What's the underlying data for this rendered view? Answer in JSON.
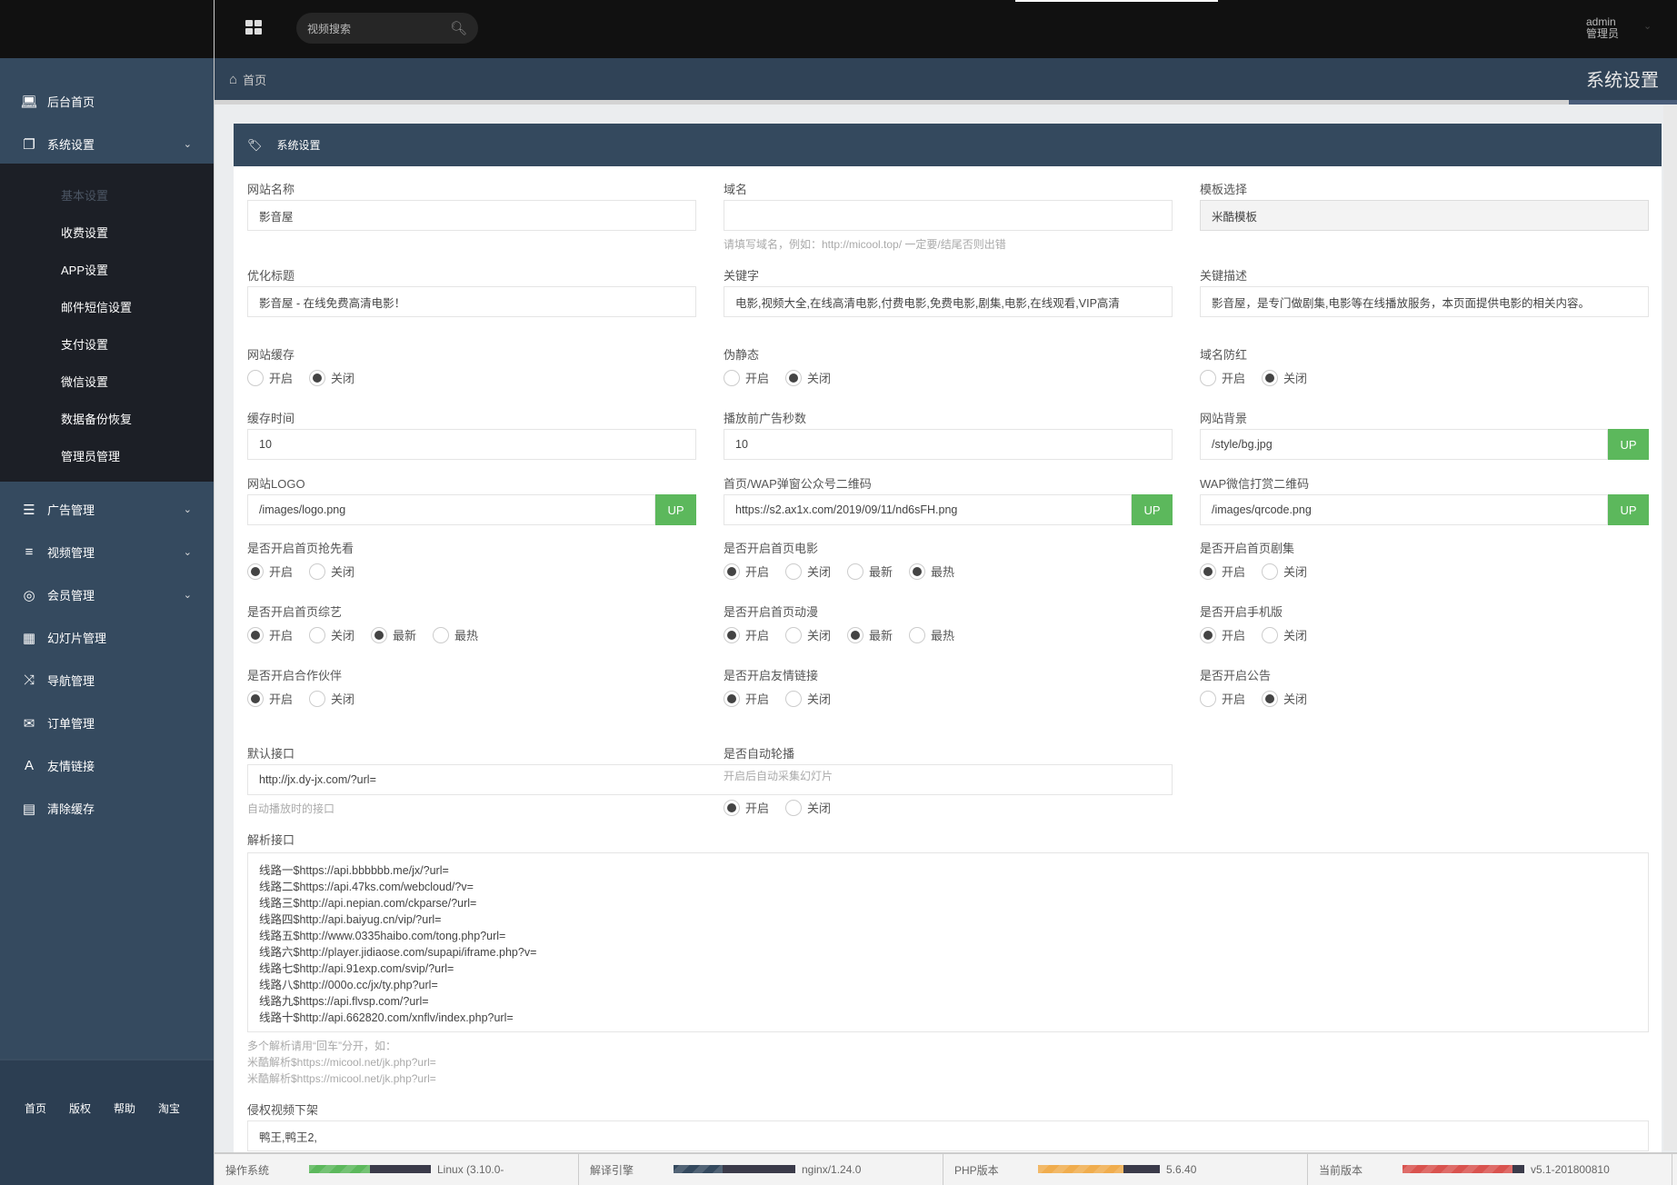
{
  "topbar": {
    "search_placeholder": "视频搜索",
    "user_name": "admin",
    "user_role": "管理员"
  },
  "breadcrumb": {
    "home": "首页",
    "page_title": "系统设置"
  },
  "sidebar": {
    "items": [
      {
        "label": "后台首页",
        "icon": "laptop-icon",
        "expandable": false
      },
      {
        "label": "系统设置",
        "icon": "copy-icon",
        "expandable": true
      },
      {
        "label": "广告管理",
        "icon": "list-icon",
        "expandable": true
      },
      {
        "label": "视频管理",
        "icon": "tasks-icon",
        "expandable": true
      },
      {
        "label": "会员管理",
        "icon": "life-ring-icon",
        "expandable": true
      },
      {
        "label": "幻灯片管理",
        "icon": "table-icon",
        "expandable": false
      },
      {
        "label": "导航管理",
        "icon": "random-icon",
        "expandable": false
      },
      {
        "label": "订单管理",
        "icon": "envelope-icon",
        "expandable": false
      },
      {
        "label": "友情链接",
        "icon": "font-icon",
        "expandable": false
      },
      {
        "label": "清除缓存",
        "icon": "calendar-icon",
        "expandable": false
      }
    ],
    "submenu": [
      "基本设置",
      "收费设置",
      "APP设置",
      "邮件短信设置",
      "支付设置",
      "微信设置",
      "数据备份恢复",
      "管理员管理"
    ],
    "submenu_active": 0,
    "footer_links": [
      "首页",
      "版权",
      "帮助",
      "淘宝"
    ]
  },
  "panel": {
    "title": "系统设置"
  },
  "form": {
    "rows": [
      [
        {
          "label": "网站名称",
          "type": "text",
          "value": "影音屋"
        },
        {
          "label": "域名",
          "type": "text",
          "value": "",
          "hint": "请填写域名，例如：http://micool.top/ 一定要/结尾否则出错"
        },
        {
          "label": "模板选择",
          "type": "select",
          "value": "米酷模板"
        }
      ],
      [
        {
          "label": "优化标题",
          "type": "text",
          "value": "影音屋 - 在线免费高清电影！"
        },
        {
          "label": "关键字",
          "type": "text",
          "value": "电影,视频大全,在线高清电影,付费电影,免费电影,剧集,电影,在线观看,VIP高清"
        },
        {
          "label": "关键描述",
          "type": "text",
          "value": "影音屋，是专门做剧集,电影等在线播放服务，本页面提供电影的相关内容。"
        }
      ],
      [
        {
          "label": "网站缓存",
          "type": "radio",
          "options": [
            "开启",
            "关闭"
          ],
          "checked": [
            false,
            true
          ]
        },
        {
          "label": "伪静态",
          "type": "radio",
          "options": [
            "开启",
            "关闭"
          ],
          "checked": [
            false,
            true
          ]
        },
        {
          "label": "域名防红",
          "type": "radio",
          "options": [
            "开启",
            "关闭"
          ],
          "checked": [
            false,
            true
          ]
        }
      ],
      [
        {
          "label": "缓存时间",
          "type": "text",
          "value": "10"
        },
        {
          "label": "播放前广告秒数",
          "type": "text",
          "value": "10"
        },
        {
          "label": "网站背景",
          "type": "upload",
          "value": "/style/bg.jpg",
          "button": "UP"
        }
      ],
      [
        {
          "label": "网站LOGO",
          "type": "upload",
          "value": "/images/logo.png",
          "button": "UP"
        },
        {
          "label": "首页/WAP弹窗公众号二维码",
          "type": "upload",
          "value": "https://s2.ax1x.com/2019/09/11/nd6sFH.png",
          "button": "UP"
        },
        {
          "label": "WAP微信打赏二维码",
          "type": "upload",
          "value": "/images/qrcode.png",
          "button": "UP"
        }
      ],
      [
        {
          "label": "是否开启首页抢先看",
          "type": "radio",
          "options": [
            "开启",
            "关闭"
          ],
          "checked": [
            true,
            false
          ]
        },
        {
          "label": "是否开启首页电影",
          "type": "radio",
          "options": [
            "开启",
            "关闭",
            "最新",
            "最热"
          ],
          "checked": [
            true,
            false,
            false,
            true
          ]
        },
        {
          "label": "是否开启首页剧集",
          "type": "radio",
          "options": [
            "开启",
            "关闭"
          ],
          "checked": [
            true,
            false
          ]
        }
      ],
      [
        {
          "label": "是否开启首页综艺",
          "type": "radio",
          "options": [
            "开启",
            "关闭",
            "最新",
            "最热"
          ],
          "checked": [
            true,
            false,
            true,
            false
          ]
        },
        {
          "label": "是否开启首页动漫",
          "type": "radio",
          "options": [
            "开启",
            "关闭",
            "最新",
            "最热"
          ],
          "checked": [
            true,
            false,
            true,
            false
          ]
        },
        {
          "label": "是否开启手机版",
          "type": "radio",
          "options": [
            "开启",
            "关闭"
          ],
          "checked": [
            true,
            false
          ]
        }
      ],
      [
        {
          "label": "是否开启合作伙伴",
          "type": "radio",
          "options": [
            "开启",
            "关闭"
          ],
          "checked": [
            true,
            false
          ]
        },
        {
          "label": "是否开启友情链接",
          "type": "radio",
          "options": [
            "开启",
            "关闭"
          ],
          "checked": [
            true,
            false
          ]
        },
        {
          "label": "是否开启公告",
          "type": "radio",
          "options": [
            "开启",
            "关闭"
          ],
          "checked": [
            false,
            true
          ]
        }
      ],
      [
        {
          "label": "默认接口",
          "type": "text",
          "value": "http://jx.dy-jx.com/?url=",
          "hint": "自动播放时的接口",
          "span": 2
        },
        {
          "label": "是否自动轮播",
          "type": "radio",
          "options": [
            "开启",
            "关闭"
          ],
          "checked": [
            true,
            false
          ],
          "hint": "开启后自动采集幻灯片"
        }
      ],
      [
        {
          "label": "解析接口",
          "type": "textarea",
          "span": 3,
          "value": "线路一$https://api.bbbbbb.me/jx/?url=\n线路二$https://api.47ks.com/webcloud/?v=\n线路三$http://api.nepian.com/ckparse/?url=\n线路四$http://api.baiyug.cn/vip/?url=\n线路五$http://www.0335haibo.com/tong.php?url=\n线路六$http://player.jidiaose.com/supapi/iframe.php?v=\n线路七$http://api.91exp.com/svip/?url=\n线路八$http://000o.cc/jx/ty.php?url=\n线路九$https://api.flvsp.com/?url=\n线路十$http://api.662820.com/xnflv/index.php?url=",
          "hint_lines": [
            "多个解析请用“回车”分开，如：",
            "米酷解析$https://micool.net/jk.php?url=",
            "米酷解析$https://micool.net/jk.php?url="
          ]
        }
      ],
      [
        {
          "label": "侵权视频下架",
          "type": "text",
          "span": 3,
          "value": "鸭王,鸭王2,"
        }
      ]
    ]
  },
  "status_bar": [
    {
      "label": "操作系统",
      "value": "Linux (3.10.0-",
      "progress": 0.5,
      "color": "#5cb85c"
    },
    {
      "label": "解译引擎",
      "value": "nginx/1.24.0",
      "progress": 0.4,
      "color": "#34495e"
    },
    {
      "label": "PHP版本",
      "value": "5.6.40",
      "progress": 0.7,
      "color": "#f0ad4e"
    },
    {
      "label": "当前版本",
      "value": "v5.1-201800810",
      "progress": 0.9,
      "color": "#d9534f"
    }
  ]
}
